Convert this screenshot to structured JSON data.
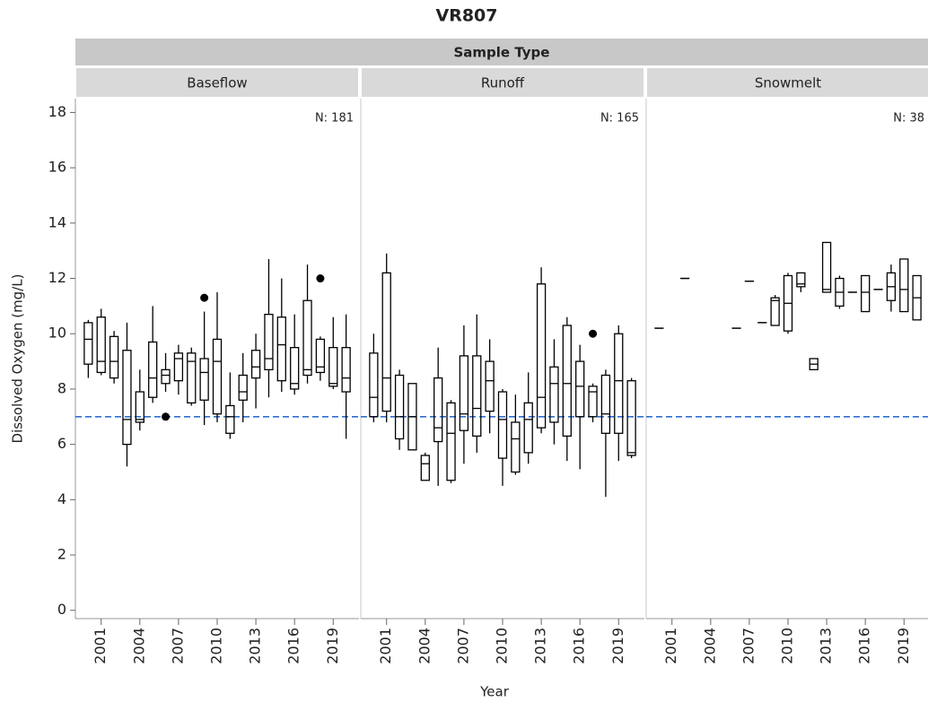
{
  "chart_data": {
    "type": "box",
    "title": "VR807",
    "facet_header": "Sample Type",
    "xlabel": "Year",
    "ylabel": "Dissolved Oxygen (mg/L)",
    "ylim": [
      -0.3,
      18.5
    ],
    "yticks": [
      0,
      2,
      4,
      6,
      8,
      10,
      12,
      14,
      16,
      18
    ],
    "xlim": [
      1999,
      2021
    ],
    "xticks": [
      2001,
      2004,
      2007,
      2010,
      2013,
      2016,
      2019
    ],
    "reference_line": 7,
    "reference_color": "#2f6fd1",
    "panels": [
      {
        "name": "Baseflow",
        "n_label": "N: 181",
        "years": [
          2000,
          2001,
          2002,
          2003,
          2004,
          2005,
          2006,
          2007,
          2008,
          2009,
          2010,
          2011,
          2012,
          2013,
          2014,
          2015,
          2016,
          2017,
          2018,
          2019,
          2020
        ],
        "min": [
          8.4,
          8.5,
          8.2,
          5.2,
          6.5,
          7.5,
          7.9,
          7.8,
          7.4,
          6.7,
          6.8,
          6.2,
          6.8,
          7.3,
          7.7,
          7.9,
          7.8,
          8.2,
          8.3,
          8.0,
          6.2
        ],
        "q1": [
          8.9,
          8.6,
          8.4,
          6.0,
          6.8,
          7.7,
          8.2,
          8.3,
          7.5,
          7.6,
          7.1,
          6.4,
          7.6,
          8.4,
          8.7,
          8.3,
          8.0,
          8.5,
          8.6,
          8.1,
          7.9
        ],
        "median": [
          9.8,
          9.0,
          9.0,
          6.9,
          6.9,
          8.4,
          8.5,
          9.1,
          9.0,
          8.6,
          9.0,
          7.0,
          7.9,
          8.8,
          9.1,
          9.6,
          8.2,
          8.7,
          8.8,
          8.2,
          8.4
        ],
        "q3": [
          10.4,
          10.6,
          9.9,
          9.4,
          7.9,
          9.7,
          8.7,
          9.3,
          9.3,
          9.1,
          9.8,
          7.4,
          8.5,
          9.4,
          10.7,
          10.6,
          9.5,
          11.2,
          9.8,
          9.5,
          9.5
        ],
        "max": [
          10.5,
          10.9,
          10.1,
          10.4,
          8.7,
          11.0,
          9.3,
          9.6,
          9.5,
          10.8,
          11.5,
          8.6,
          9.3,
          10.0,
          12.7,
          12.0,
          10.7,
          12.5,
          9.9,
          10.6,
          10.7
        ],
        "outlier_x": [
          2006,
          2009,
          2018
        ],
        "outlier_y": [
          7.0,
          11.3,
          12.0
        ]
      },
      {
        "name": "Runoff",
        "n_label": "N: 165",
        "years": [
          2000,
          2001,
          2002,
          2003,
          2004,
          2005,
          2006,
          2007,
          2008,
          2009,
          2010,
          2011,
          2012,
          2013,
          2014,
          2015,
          2016,
          2017,
          2018,
          2019,
          2020
        ],
        "min": [
          6.8,
          6.8,
          5.8,
          5.8,
          4.7,
          4.5,
          4.6,
          5.3,
          5.7,
          6.4,
          4.5,
          4.9,
          5.3,
          6.4,
          6.0,
          5.4,
          5.1,
          6.8,
          4.1,
          5.4,
          5.5
        ],
        "q1": [
          7.0,
          7.2,
          6.2,
          5.8,
          4.7,
          6.1,
          4.7,
          6.5,
          6.3,
          7.2,
          5.5,
          5.0,
          5.7,
          6.6,
          6.8,
          6.3,
          7.0,
          7.0,
          6.4,
          6.4,
          5.6
        ],
        "median": [
          7.7,
          8.4,
          7.0,
          7.0,
          5.3,
          6.6,
          6.4,
          7.1,
          7.3,
          8.3,
          6.9,
          6.2,
          6.9,
          7.7,
          8.2,
          8.2,
          8.1,
          7.9,
          7.1,
          8.3,
          5.7
        ],
        "q3": [
          9.3,
          12.2,
          8.5,
          8.2,
          5.6,
          8.4,
          7.5,
          9.2,
          9.2,
          9.0,
          7.9,
          6.8,
          7.5,
          11.8,
          8.8,
          10.3,
          9.0,
          8.1,
          8.5,
          10.0,
          8.3
        ],
        "max": [
          10.0,
          12.9,
          8.7,
          8.2,
          5.7,
          9.5,
          7.6,
          10.3,
          10.7,
          9.8,
          8.0,
          7.8,
          8.6,
          12.4,
          9.8,
          10.6,
          9.6,
          8.2,
          8.7,
          10.3,
          8.4
        ],
        "outlier_x": [
          2017
        ],
        "outlier_y": [
          10.0
        ]
      },
      {
        "name": "Snowmelt",
        "n_label": "N: 38",
        "years": [
          2000,
          2002,
          2006,
          2007,
          2008,
          2009,
          2010,
          2011,
          2012,
          2013,
          2014,
          2015,
          2016,
          2017,
          2018,
          2019,
          2020
        ],
        "min": [
          10.2,
          12.0,
          10.2,
          11.9,
          10.4,
          10.3,
          10.0,
          11.5,
          8.7,
          11.5,
          10.9,
          11.5,
          10.8,
          11.6,
          10.8,
          10.8,
          10.5
        ],
        "q1": [
          10.2,
          12.0,
          10.2,
          11.9,
          10.4,
          10.3,
          10.1,
          11.7,
          8.7,
          11.5,
          11.0,
          11.5,
          10.8,
          11.6,
          11.2,
          10.8,
          10.5
        ],
        "median": [
          10.2,
          12.0,
          10.2,
          11.9,
          10.4,
          11.2,
          11.1,
          11.8,
          8.9,
          11.6,
          11.5,
          11.5,
          11.5,
          11.6,
          11.7,
          11.6,
          11.3
        ],
        "q3": [
          10.2,
          12.0,
          10.2,
          11.9,
          10.4,
          11.3,
          12.1,
          12.2,
          9.1,
          13.3,
          12.0,
          11.5,
          12.1,
          11.6,
          12.2,
          12.7,
          12.1
        ],
        "max": [
          10.2,
          12.0,
          10.2,
          11.9,
          10.4,
          11.4,
          12.2,
          12.2,
          9.1,
          13.3,
          12.1,
          11.5,
          12.1,
          11.6,
          12.5,
          12.7,
          12.1
        ],
        "outlier_x": [],
        "outlier_y": []
      }
    ]
  }
}
